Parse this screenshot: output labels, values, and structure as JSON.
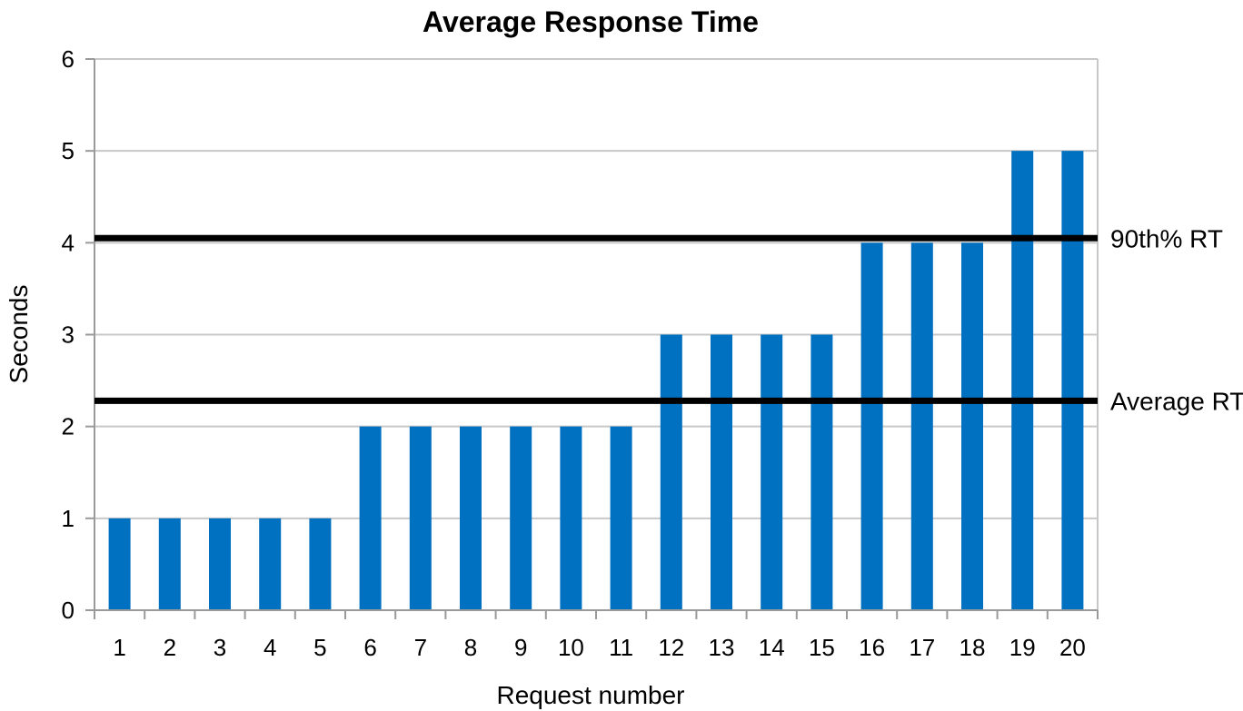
{
  "chart_data": {
    "type": "bar",
    "title": "Average Response Time",
    "xlabel": "Request number",
    "ylabel": "Seconds",
    "categories": [
      "1",
      "2",
      "3",
      "4",
      "5",
      "6",
      "7",
      "8",
      "9",
      "10",
      "11",
      "12",
      "13",
      "14",
      "15",
      "16",
      "17",
      "18",
      "19",
      "20"
    ],
    "values": [
      1,
      1,
      1,
      1,
      1,
      2,
      2,
      2,
      2,
      2,
      2,
      3,
      3,
      3,
      3,
      4,
      4,
      4,
      5,
      5
    ],
    "ylim": [
      0,
      6
    ],
    "yticks": [
      "0",
      "1",
      "2",
      "3",
      "4",
      "5",
      "6"
    ],
    "grid": true,
    "bar_color": "#0070c0",
    "reference_lines": [
      {
        "name": "90th% RT",
        "value": 4.05
      },
      {
        "name": "Average RT",
        "value": 2.28
      }
    ]
  }
}
